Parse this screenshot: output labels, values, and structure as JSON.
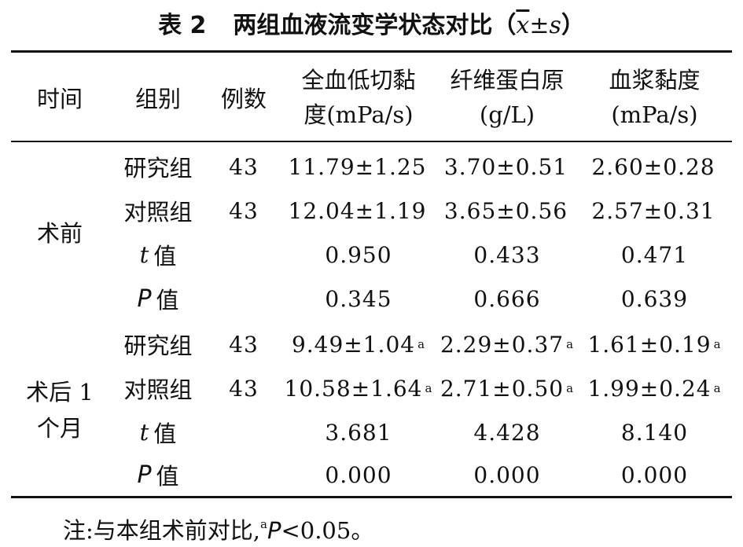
{
  "title": {
    "label": "表 2",
    "text": "两组血液流变学状态对比（",
    "x_symbol": "x",
    "pm": "±",
    "s_symbol": "s",
    "close": "）"
  },
  "headers": {
    "time": "时间",
    "group": "组别",
    "cases": "例数",
    "col1_line1": "全血低切黏",
    "col1_line2": "度(mPa/s)",
    "col2_line1": "纤维蛋白原",
    "col2_line2": "(g/L)",
    "col3_line1": "血浆黏度",
    "col3_line2": "(mPa/s)"
  },
  "sections": [
    {
      "time_line1": "术前",
      "time_line2": "",
      "rows": [
        {
          "group": "研究组",
          "n": "43",
          "v1": "11.79±1.25",
          "v1_sup": "",
          "v2": "3.70±0.51",
          "v2_sup": "",
          "v3": "2.60±0.28",
          "v3_sup": ""
        },
        {
          "group": "对照组",
          "n": "43",
          "v1": "12.04±1.19",
          "v1_sup": "",
          "v2": "3.65±0.56",
          "v2_sup": "",
          "v3": "2.57±0.31",
          "v3_sup": ""
        }
      ],
      "t": {
        "sym": "t",
        "label": "值",
        "v1": "0.950",
        "v2": "0.433",
        "v3": "0.471"
      },
      "p": {
        "sym": "P",
        "label": "值",
        "v1": "0.345",
        "v2": "0.666",
        "v3": "0.639"
      }
    },
    {
      "time_line1": "术后 1",
      "time_line2": "个月",
      "rows": [
        {
          "group": "研究组",
          "n": "43",
          "v1": "9.49±1.04",
          "v1_sup": "a",
          "v2": "2.29±0.37",
          "v2_sup": "a",
          "v3": "1.61±0.19",
          "v3_sup": "a"
        },
        {
          "group": "对照组",
          "n": "43",
          "v1": "10.58±1.64",
          "v1_sup": "a",
          "v2": "2.71±0.50",
          "v2_sup": "a",
          "v3": "1.99±0.24",
          "v3_sup": "a"
        }
      ],
      "t": {
        "sym": "t",
        "label": "值",
        "v1": "3.681",
        "v2": "4.428",
        "v3": "8.140"
      },
      "p": {
        "sym": "P",
        "label": "值",
        "v1": "0.000",
        "v2": "0.000",
        "v3": "0.000"
      }
    }
  ],
  "note": {
    "prefix": "注:与本组术前对比,",
    "sup": "a",
    "sym": "P",
    "rest": "<0.05。"
  }
}
